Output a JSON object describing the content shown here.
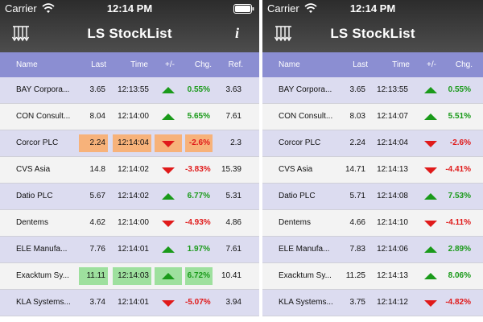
{
  "status": {
    "carrier": "Carrier",
    "time": "12:14 PM"
  },
  "app": {
    "title": "LS StockList"
  },
  "colors": {
    "header": "#3a3a3a",
    "column_header": "#8b8ed2",
    "up": "#1a9a1a",
    "down": "#e01a1a",
    "highlight_up": "#9ee09e",
    "highlight_down": "#f7b27a"
  },
  "columns": {
    "name": "Name",
    "last": "Last",
    "time": "Time",
    "change_dir": "+/-",
    "chg": "Chg.",
    "ref": "Ref."
  },
  "left_rows": [
    {
      "name": "BAY Corpora...",
      "last": "3.65",
      "time": "12:13:55",
      "dir": "up",
      "chg": "0.55%",
      "ref": "3.63",
      "highlight": ""
    },
    {
      "name": "CON Consult...",
      "last": "8.04",
      "time": "12:14:00",
      "dir": "up",
      "chg": "5.65%",
      "ref": "7.61",
      "highlight": ""
    },
    {
      "name": "Corcor PLC",
      "last": "2.24",
      "time": "12:14:04",
      "dir": "down",
      "chg": "-2.6%",
      "ref": "2.3",
      "highlight": "down"
    },
    {
      "name": "CVS Asia",
      "last": "14.8",
      "time": "12:14:02",
      "dir": "down",
      "chg": "-3.83%",
      "ref": "15.39",
      "highlight": ""
    },
    {
      "name": "Datio PLC",
      "last": "5.67",
      "time": "12:14:02",
      "dir": "up",
      "chg": "6.77%",
      "ref": "5.31",
      "highlight": ""
    },
    {
      "name": "Dentems",
      "last": "4.62",
      "time": "12:14:00",
      "dir": "down",
      "chg": "-4.93%",
      "ref": "4.86",
      "highlight": ""
    },
    {
      "name": "ELE Manufa...",
      "last": "7.76",
      "time": "12:14:01",
      "dir": "up",
      "chg": "1.97%",
      "ref": "7.61",
      "highlight": ""
    },
    {
      "name": "Exacktum Sy...",
      "last": "11.11",
      "time": "12:14:03",
      "dir": "up",
      "chg": "6.72%",
      "ref": "10.41",
      "highlight": "up"
    },
    {
      "name": "KLA Systems...",
      "last": "3.74",
      "time": "12:14:01",
      "dir": "down",
      "chg": "-5.07%",
      "ref": "3.94",
      "highlight": ""
    }
  ],
  "right_rows": [
    {
      "name": "BAY Corpora...",
      "last": "3.65",
      "time": "12:13:55",
      "dir": "up",
      "chg": "0.55%"
    },
    {
      "name": "CON Consult...",
      "last": "8.03",
      "time": "12:14:07",
      "dir": "up",
      "chg": "5.51%"
    },
    {
      "name": "Corcor PLC",
      "last": "2.24",
      "time": "12:14:04",
      "dir": "down",
      "chg": "-2.6%"
    },
    {
      "name": "CVS Asia",
      "last": "14.71",
      "time": "12:14:13",
      "dir": "down",
      "chg": "-4.41%"
    },
    {
      "name": "Datio PLC",
      "last": "5.71",
      "time": "12:14:08",
      "dir": "up",
      "chg": "7.53%"
    },
    {
      "name": "Dentems",
      "last": "4.66",
      "time": "12:14:10",
      "dir": "down",
      "chg": "-4.11%"
    },
    {
      "name": "ELE Manufa...",
      "last": "7.83",
      "time": "12:14:06",
      "dir": "up",
      "chg": "2.89%"
    },
    {
      "name": "Exacktum Sy...",
      "last": "11.25",
      "time": "12:14:13",
      "dir": "up",
      "chg": "8.06%"
    },
    {
      "name": "KLA Systems...",
      "last": "3.75",
      "time": "12:14:12",
      "dir": "down",
      "chg": "-4.82%"
    }
  ]
}
